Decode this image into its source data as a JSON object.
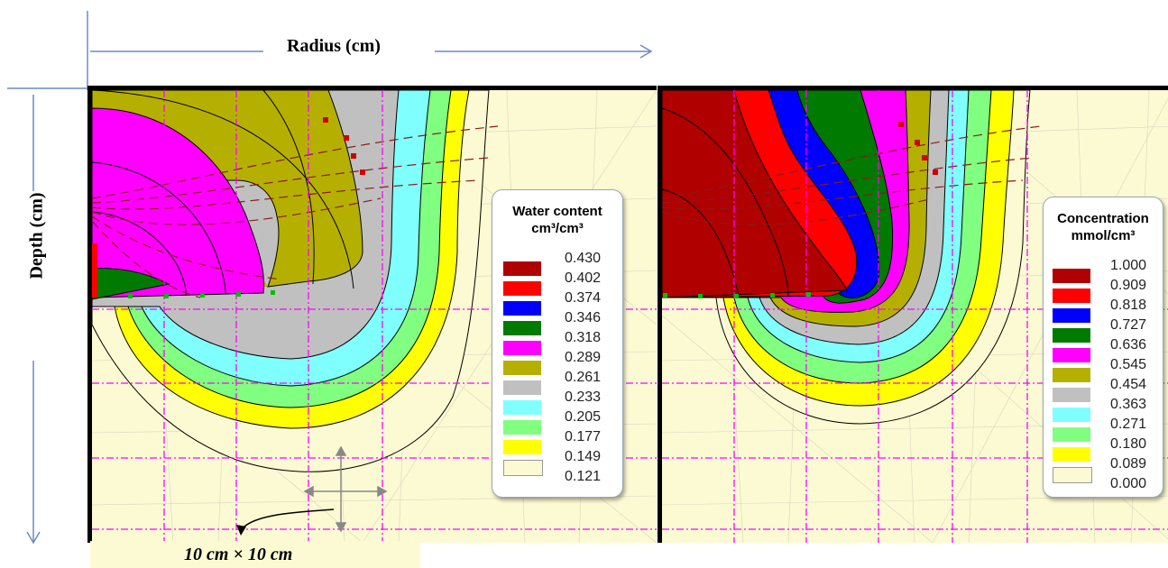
{
  "axes": {
    "x_label": "Radius (cm)",
    "y_label": "Depth (cm)"
  },
  "scale_label": "10 cm × 10 cm",
  "left_panel": {
    "legend_title_line1": "Water content",
    "legend_title_line2": "cm³/cm³",
    "levels": [
      {
        "value": "0.430",
        "color": "#b00000"
      },
      {
        "value": "0.402",
        "color": "#ff0000"
      },
      {
        "value": "0.374",
        "color": "#0000ff"
      },
      {
        "value": "0.346",
        "color": "#007a00"
      },
      {
        "value": "0.318",
        "color": "#ff00ff"
      },
      {
        "value": "0.289",
        "color": "#b5b000"
      },
      {
        "value": "0.261",
        "color": "#c0c0c0"
      },
      {
        "value": "0.233",
        "color": "#80ffff"
      },
      {
        "value": "0.205",
        "color": "#80ff80"
      },
      {
        "value": "0.177",
        "color": "#ffff00"
      },
      {
        "value": "0.149",
        "color": "#fbfad3"
      },
      {
        "value": "0.121",
        "color": "#fbfad3"
      }
    ]
  },
  "right_panel": {
    "legend_title_line1": "Concentration",
    "legend_title_line2": "mmol/cm³",
    "levels": [
      {
        "value": "1.000",
        "color": "#b00000"
      },
      {
        "value": "0.909",
        "color": "#ff0000"
      },
      {
        "value": "0.818",
        "color": "#0000ff"
      },
      {
        "value": "0.727",
        "color": "#007a00"
      },
      {
        "value": "0.636",
        "color": "#ff00ff"
      },
      {
        "value": "0.545",
        "color": "#b5b000"
      },
      {
        "value": "0.454",
        "color": "#c0c0c0"
      },
      {
        "value": "0.363",
        "color": "#80ffff"
      },
      {
        "value": "0.271",
        "color": "#80ff80"
      },
      {
        "value": "0.180",
        "color": "#ffff00"
      },
      {
        "value": "0.089",
        "color": "#fbfad3"
      },
      {
        "value": "0.000",
        "color": "#fbfad3"
      }
    ]
  }
}
